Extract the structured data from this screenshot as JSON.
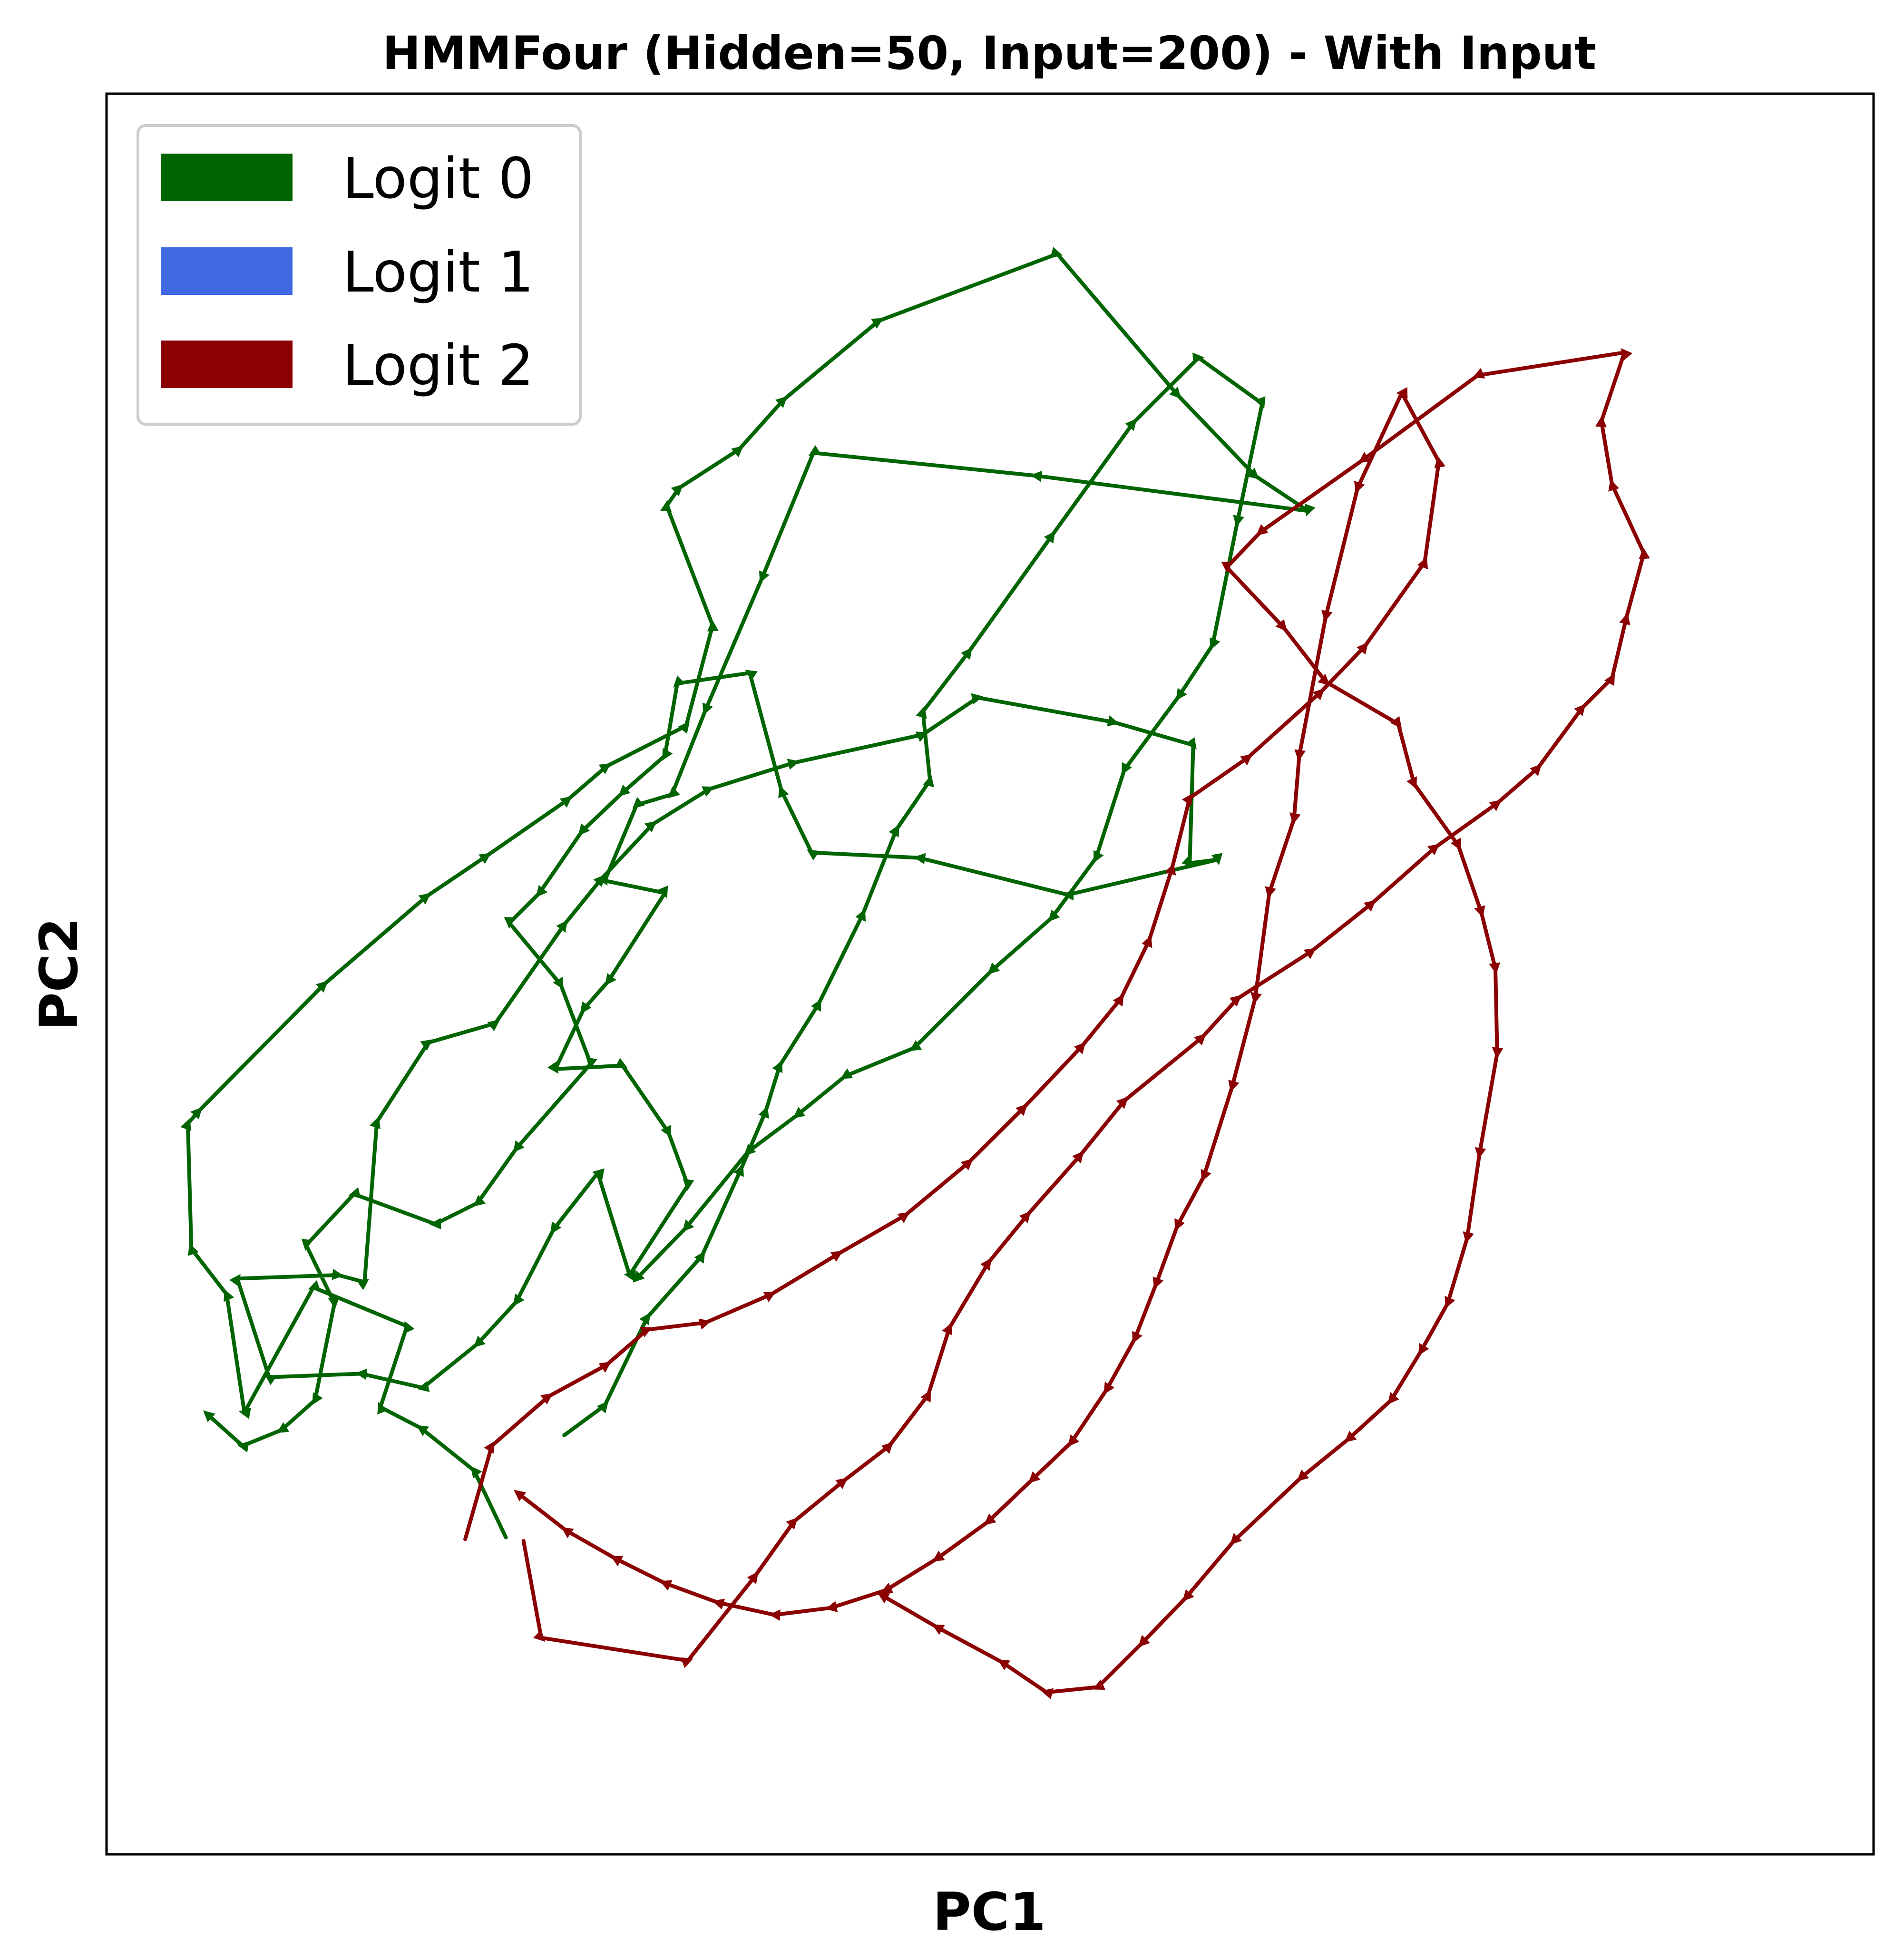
{
  "chart_data": {
    "type": "line",
    "title": "HMMFour (Hidden=50, Input=200) - With Input",
    "xlabel": "PC1",
    "ylabel": "PC2",
    "xticks": "none",
    "yticks": "none",
    "grid": false,
    "legend_position": "top-left",
    "xlim": [
      0,
      1
    ],
    "ylim": [
      0,
      1
    ],
    "legend": [
      {
        "label": "Logit 0",
        "color": "#006400"
      },
      {
        "label": "Logit 1",
        "color": "#4169E1"
      },
      {
        "label": "Logit 2",
        "color": "#8B0000"
      }
    ],
    "series": [
      {
        "name": "Logit 0",
        "color": "#006400",
        "points": [
          [
            0.226,
            0.18
          ],
          [
            0.208,
            0.218
          ],
          [
            0.178,
            0.242
          ],
          [
            0.155,
            0.254
          ],
          [
            0.17,
            0.3
          ],
          [
            0.117,
            0.322
          ],
          [
            0.078,
            0.251
          ],
          [
            0.068,
            0.318
          ],
          [
            0.048,
            0.344
          ],
          [
            0.046,
            0.415
          ],
          [
            0.052,
            0.422
          ],
          [
            0.123,
            0.494
          ],
          [
            0.181,
            0.544
          ],
          [
            0.215,
            0.567
          ],
          [
            0.261,
            0.599
          ],
          [
            0.283,
            0.618
          ],
          [
            0.328,
            0.641
          ],
          [
            0.343,
            0.698
          ],
          [
            0.317,
            0.766
          ],
          [
            0.324,
            0.776
          ],
          [
            0.358,
            0.798
          ],
          [
            0.383,
            0.826
          ],
          [
            0.437,
            0.871
          ],
          [
            0.538,
            0.909
          ],
          [
            0.606,
            0.829
          ],
          [
            0.65,
            0.783
          ],
          [
            0.68,
            0.763
          ],
          [
            0.526,
            0.783
          ],
          [
            0.4,
            0.796
          ],
          [
            0.371,
            0.725
          ],
          [
            0.339,
            0.65
          ],
          [
            0.32,
            0.602
          ],
          [
            0.3,
            0.596
          ],
          [
            0.282,
            0.553
          ],
          [
            0.316,
            0.546
          ],
          [
            0.284,
            0.496
          ],
          [
            0.27,
            0.48
          ],
          [
            0.254,
            0.446
          ],
          [
            0.292,
            0.448
          ],
          [
            0.318,
            0.41
          ],
          [
            0.329,
            0.38
          ],
          [
            0.296,
            0.329
          ],
          [
            0.278,
            0.387
          ],
          [
            0.253,
            0.355
          ],
          [
            0.232,
            0.314
          ],
          [
            0.21,
            0.29
          ],
          [
            0.179,
            0.265
          ],
          [
            0.144,
            0.273
          ],
          [
            0.092,
            0.271
          ],
          [
            0.074,
            0.327
          ],
          [
            0.131,
            0.329
          ],
          [
            0.146,
            0.325
          ],
          [
            0.153,
            0.416
          ],
          [
            0.182,
            0.461
          ],
          [
            0.22,
            0.472
          ],
          [
            0.259,
            0.528
          ],
          [
            0.28,
            0.554
          ],
          [
            0.309,
            0.585
          ],
          [
            0.341,
            0.605
          ],
          [
            0.389,
            0.62
          ],
          [
            0.462,
            0.636
          ],
          [
            0.493,
            0.657
          ],
          [
            0.57,
            0.643
          ],
          [
            0.615,
            0.63
          ],
          [
            0.613,
            0.563
          ],
          [
            0.629,
            0.565
          ],
          [
            0.544,
            0.545
          ],
          [
            0.46,
            0.566
          ],
          [
            0.399,
            0.569
          ],
          [
            0.382,
            0.604
          ],
          [
            0.364,
            0.671
          ],
          [
            0.323,
            0.665
          ],
          [
            0.316,
            0.624
          ],
          [
            0.292,
            0.603
          ],
          [
            0.269,
            0.581
          ],
          [
            0.245,
            0.546
          ],
          [
            0.228,
            0.529
          ],
          [
            0.257,
            0.494
          ],
          [
            0.274,
            0.449
          ],
          [
            0.232,
            0.401
          ],
          [
            0.21,
            0.37
          ],
          [
            0.186,
            0.358
          ],
          [
            0.14,
            0.375
          ],
          [
            0.113,
            0.346
          ],
          [
            0.129,
            0.313
          ],
          [
            0.118,
            0.258
          ],
          [
            0.099,
            0.241
          ],
          [
            0.077,
            0.232
          ],
          [
            0.057,
            0.25
          ]
        ]
      },
      {
        "name": "Logit 0",
        "color": "#006400",
        "points": [
          [
            0.259,
            0.238
          ],
          [
            0.282,
            0.255
          ],
          [
            0.306,
            0.305
          ],
          [
            0.337,
            0.34
          ],
          [
            0.359,
            0.389
          ],
          [
            0.373,
            0.422
          ],
          [
            0.381,
            0.448
          ],
          [
            0.403,
            0.483
          ],
          [
            0.428,
            0.534
          ],
          [
            0.447,
            0.582
          ],
          [
            0.466,
            0.61
          ],
          [
            0.462,
            0.649
          ],
          [
            0.488,
            0.683
          ],
          [
            0.535,
            0.749
          ],
          [
            0.581,
            0.813
          ],
          [
            0.618,
            0.85
          ],
          [
            0.654,
            0.824
          ],
          [
            0.64,
            0.757
          ],
          [
            0.626,
            0.687
          ],
          [
            0.607,
            0.658
          ],
          [
            0.576,
            0.616
          ],
          [
            0.56,
            0.566
          ],
          [
            0.535,
            0.532
          ],
          [
            0.501,
            0.502
          ],
          [
            0.457,
            0.458
          ],
          [
            0.418,
            0.442
          ],
          [
            0.391,
            0.42
          ],
          [
            0.363,
            0.399
          ],
          [
            0.328,
            0.356
          ],
          [
            0.3,
            0.327
          ]
        ]
      },
      {
        "name": "Logit 2",
        "color": "#8B0000",
        "points": [
          [
            0.236,
            0.178
          ],
          [
            0.246,
            0.123
          ],
          [
            0.329,
            0.11
          ],
          [
            0.367,
            0.158
          ],
          [
            0.389,
            0.189
          ],
          [
            0.417,
            0.212
          ],
          [
            0.443,
            0.232
          ],
          [
            0.465,
            0.261
          ],
          [
            0.477,
            0.299
          ],
          [
            0.499,
            0.336
          ],
          [
            0.521,
            0.363
          ],
          [
            0.551,
            0.397
          ],
          [
            0.576,
            0.428
          ],
          [
            0.62,
            0.464
          ],
          [
            0.64,
            0.486
          ],
          [
            0.682,
            0.513
          ],
          [
            0.716,
            0.54
          ],
          [
            0.752,
            0.572
          ],
          [
            0.787,
            0.597
          ],
          [
            0.81,
            0.617
          ],
          [
            0.835,
            0.651
          ],
          [
            0.852,
            0.668
          ],
          [
            0.86,
            0.702
          ],
          [
            0.87,
            0.739
          ],
          [
            0.852,
            0.778
          ],
          [
            0.846,
            0.814
          ],
          [
            0.859,
            0.853
          ],
          [
            0.776,
            0.84
          ],
          [
            0.711,
            0.792
          ],
          [
            0.653,
            0.751
          ],
          [
            0.634,
            0.731
          ],
          [
            0.666,
            0.697
          ],
          [
            0.69,
            0.666
          ],
          [
            0.731,
            0.642
          ],
          [
            0.74,
            0.608
          ],
          [
            0.765,
            0.573
          ],
          [
            0.778,
            0.535
          ],
          [
            0.786,
            0.503
          ],
          [
            0.787,
            0.455
          ],
          [
            0.777,
            0.398
          ],
          [
            0.77,
            0.35
          ],
          [
            0.759,
            0.313
          ],
          [
            0.744,
            0.286
          ],
          [
            0.727,
            0.258
          ],
          [
            0.703,
            0.236
          ],
          [
            0.676,
            0.214
          ],
          [
            0.638,
            0.178
          ],
          [
            0.611,
            0.146
          ],
          [
            0.586,
            0.12
          ],
          [
            0.561,
            0.095
          ],
          [
            0.532,
            0.092
          ],
          [
            0.507,
            0.109
          ],
          [
            0.47,
            0.129
          ],
          [
            0.439,
            0.147
          ]
        ]
      },
      {
        "name": "Logit 2",
        "color": "#8B0000",
        "points": [
          [
            0.203,
            0.179
          ],
          [
            0.218,
            0.232
          ],
          [
            0.25,
            0.26
          ],
          [
            0.283,
            0.278
          ],
          [
            0.306,
            0.298
          ],
          [
            0.339,
            0.302
          ],
          [
            0.376,
            0.318
          ],
          [
            0.414,
            0.341
          ],
          [
            0.452,
            0.363
          ],
          [
            0.488,
            0.393
          ],
          [
            0.519,
            0.424
          ],
          [
            0.552,
            0.459
          ],
          [
            0.574,
            0.486
          ],
          [
            0.59,
            0.519
          ],
          [
            0.603,
            0.56
          ],
          [
            0.613,
            0.6
          ],
          [
            0.646,
            0.623
          ],
          [
            0.687,
            0.66
          ],
          [
            0.712,
            0.686
          ],
          [
            0.746,
            0.734
          ],
          [
            0.754,
            0.791
          ],
          [
            0.733,
            0.83
          ],
          [
            0.708,
            0.776
          ],
          [
            0.69,
            0.703
          ],
          [
            0.675,
            0.624
          ],
          [
            0.672,
            0.588
          ],
          [
            0.658,
            0.546
          ],
          [
            0.65,
            0.486
          ],
          [
            0.637,
            0.436
          ],
          [
            0.621,
            0.385
          ],
          [
            0.606,
            0.357
          ],
          [
            0.594,
            0.324
          ],
          [
            0.582,
            0.293
          ],
          [
            0.566,
            0.264
          ],
          [
            0.546,
            0.234
          ],
          [
            0.524,
            0.213
          ],
          [
            0.499,
            0.189
          ],
          [
            0.47,
            0.168
          ],
          [
            0.441,
            0.15
          ],
          [
            0.41,
            0.14
          ],
          [
            0.378,
            0.136
          ],
          [
            0.346,
            0.143
          ],
          [
            0.316,
            0.154
          ],
          [
            0.288,
            0.168
          ],
          [
            0.26,
            0.184
          ],
          [
            0.233,
            0.205
          ]
        ]
      }
    ]
  }
}
